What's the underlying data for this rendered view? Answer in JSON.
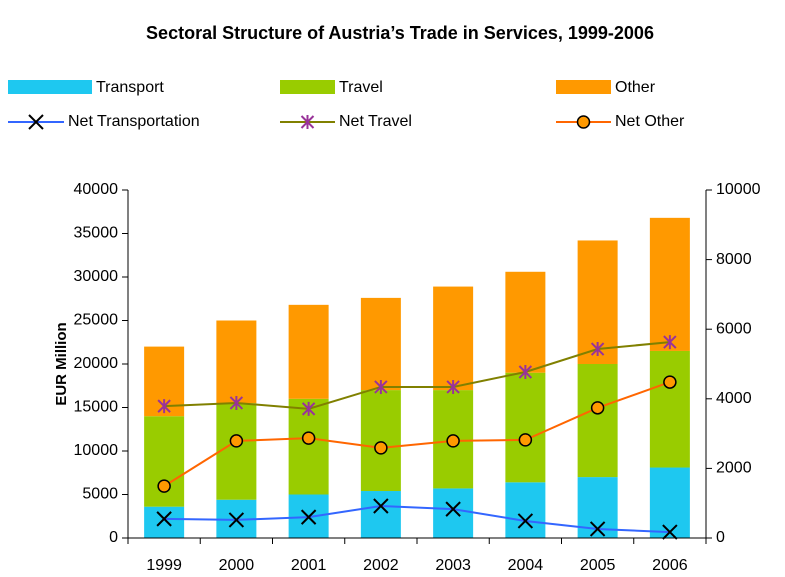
{
  "chart_data": {
    "type": "bar",
    "title": "Sectoral Structure of Austria’s Trade in Services, 1999-2006",
    "y_label": "EUR Million",
    "categories": [
      "1999",
      "2000",
      "2001",
      "2002",
      "2003",
      "2004",
      "2005",
      "2006"
    ],
    "ylim": [
      0,
      40000
    ],
    "yticks": [
      0,
      5000,
      10000,
      15000,
      20000,
      25000,
      30000,
      35000,
      40000
    ],
    "y2lim": [
      0,
      10000
    ],
    "y2ticks": [
      0,
      2000,
      4000,
      6000,
      8000,
      10000
    ],
    "stacked": true,
    "series": [
      {
        "name": "Transport",
        "type": "bar",
        "color": "#1ec8f0",
        "values": [
          3600,
          4400,
          5000,
          5400,
          5700,
          6400,
          7000,
          8100
        ]
      },
      {
        "name": "Travel",
        "type": "bar",
        "color": "#99cc00",
        "values": [
          10400,
          11100,
          11000,
          11600,
          11300,
          12600,
          13000,
          13400
        ]
      },
      {
        "name": "Other",
        "type": "bar",
        "color": "#ff9900",
        "values": [
          8000,
          9500,
          10800,
          10600,
          11900,
          11600,
          14200,
          15300
        ]
      },
      {
        "name": "Net Transportation",
        "type": "line",
        "axis": "y2",
        "color": "#3366ff",
        "marker": "x",
        "marker_color": "#000000",
        "values": [
          550,
          520,
          600,
          920,
          830,
          490,
          260,
          170
        ]
      },
      {
        "name": "Net Travel",
        "type": "line",
        "axis": "y2",
        "color": "#808000",
        "marker": "star",
        "marker_color": "#993399",
        "values": [
          3790,
          3880,
          3710,
          4340,
          4340,
          4770,
          5430,
          5630
        ]
      },
      {
        "name": "Net Other",
        "type": "line",
        "axis": "y2",
        "color": "#ff6600",
        "marker": "circle",
        "marker_color": "#ff9900",
        "values": [
          1490,
          2790,
          2870,
          2590,
          2790,
          2820,
          3740,
          4480
        ]
      }
    ]
  }
}
